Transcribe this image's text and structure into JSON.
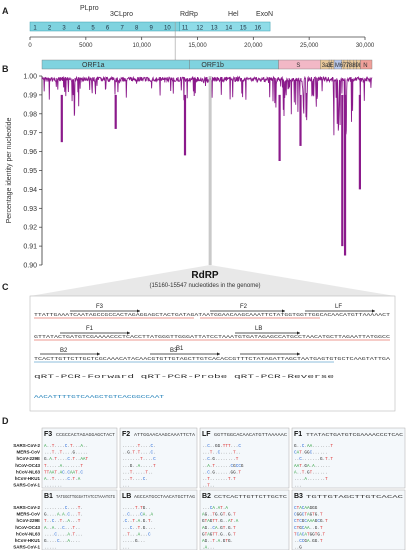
{
  "panels": {
    "A": "A",
    "B": "B",
    "C": "C",
    "D": "D"
  },
  "panel_a": {
    "top_labels": [
      "PLpro",
      "3CLpro",
      "RdRp",
      "Hel",
      "ExoN"
    ],
    "nsp_numbers_a": [
      "1",
      "2",
      "3",
      "4",
      "5",
      "6",
      "7",
      "8",
      "9",
      "10"
    ],
    "nsp_numbers_b": [
      "11",
      "12",
      "13",
      "14",
      "15",
      "16"
    ],
    "ruler_ticks": [
      "0",
      "5000",
      "10,000",
      "15,000",
      "20,000",
      "25,000",
      "30,000"
    ]
  },
  "panel_b": {
    "orfs": [
      "ORF1a",
      "ORF1b",
      "S",
      "3a",
      "3b",
      "E",
      "M",
      "6",
      "7a",
      "7b",
      "8a",
      "8b",
      "9b",
      "N"
    ],
    "y_axis_label": "Percentage identity per nucleotide",
    "y_ticks": [
      "1.00",
      "0.99",
      "0.98",
      "0.97",
      "0.96",
      "0.95",
      "0.94",
      "0.93",
      "0.92",
      "0.91",
      "0.90"
    ],
    "colors": {
      "trace": "#8b1a8b",
      "orf1": "#7fd3df",
      "orf_s": "#f2b8c6",
      "orf_acc": "#e9c89a",
      "orf_mn": "#b7c7ea"
    }
  },
  "panel_c": {
    "title": "RdRP",
    "subtitle": "(15160-15547 nucleotides in the genome)",
    "seq_lines": [
      "TTATTGAAATCAATAGCCGCCACTAGAGGAGCTACTGATAGATAATGGAACAAGCAAATTCTATGGTGGTTGGCACAACATGTTAAAAACT",
      "GTTATACTGATGTCGAAAACCCTCACCTTATGGGTTGGGATTATCCTAAATGTGATAGAGCCATGCCTAACATGCTTAGAATTATGGCC",
      "TCACTTGTTCTTGCTCGCAAACATACAACGTGTTGTAGCTTGTCACACCGTTTCTATAGATTAGCTAATGAGTGTGCTCAAGTATTGA",
      "qRT-PCR-Forward          qRT-PCR-Probe          qRT-PCR-Reverse",
      "AACATTTTGTCAAGCTGTCACGGCCAAT"
    ],
    "primer_labels": [
      "F3",
      "F2",
      "LF",
      "F1",
      "LB",
      "B1",
      "B2",
      "B3"
    ]
  },
  "panel_d": {
    "species": [
      "SARS-CoV-2",
      "MERS-CoV",
      "hCoV-229E",
      "hCoV-OC43",
      "hCoV-NL63",
      "hCoV-HKU1",
      "SARS-CoV-1"
    ],
    "blocks_top": [
      {
        "label": "F3",
        "ref": "CCGCCACTAGAGGAGCTACT",
        "rows": [
          "A..T....C.T...A..",
          "...T..T....G.....",
          "G.A.T....C.T..AAT",
          "T.....A.......T",
          "TTAAT.AC.CAAT.C",
          "A..T.....C.T.A",
          "......."
        ]
      },
      {
        "label": "F2",
        "ref": "ATTGGAACAAGCAAATTCTA",
        "rows": [
          "......T....C.",
          "..G.T.T....C.",
          ".......T....C",
          "...G..A.....T",
          "...T.....T..",
          "...T....C.",
          "..."
        ]
      },
      {
        "label": "LF",
        "ref": "GGTTGGCACAACATGTTAAAAAC",
        "rows": [
          "..C..GG.TTT...C",
          "...T..C.....T..",
          "..C.G........T",
          "..A.T......CGCCG",
          "..C.G......GG.T",
          "..T.......T.T",
          "..T.."
        ]
      },
      {
        "label": "F1",
        "ref": "TTATACTGATGTCGAAAACCCTCAC",
        "rows": [
          "G..C.AA.......T",
          "CAT.GGC......",
          "..C.......G.T.T",
          "AAT.GA.A......",
          "A..T.GT......",
          "....A.......T",
          "..."
        ]
      }
    ],
    "blocks_bottom": [
      {
        "label": "B1",
        "ref": "TATGGGTTGGGATTATCCTAAATGTG",
        "rows": [
          "........C....T.",
          "G....A.A.C...T.",
          "T..C..T..A...T",
          "A..A...C...T..",
          "....C....A.T...",
          "G....C...A....",
          "....."
        ]
      },
      {
        "label": "LB",
        "ref": "AGCCATGCCTAACATGCTTAG",
        "rows": [
          ".....T.TG..",
          "..C....CA..A",
          ".C..T.A.G.T.",
          "...C..T.G....",
          "..T...A...C",
          ".....G...",
          "..."
        ]
      },
      {
        "label": "B2",
        "ref": "CCTCACTTGTTCTTGCTC",
        "rows": [
          "...CA.AT.A",
          "AG..TG.GT.G.T",
          "GTAGTT.G..AT.A",
          "AG..CA.GT.G.T",
          "GTAGTT.G..G.T",
          "AG..T.A.GTG.",
          ".A..."
        ]
      },
      {
        "label": "B3",
        "ref": "TGTTGTAGCTTGTCACAC",
        "rows": [
          "CTACAAGGG",
          "CGGCTAGTG.T",
          "CTCGCAAAGCG.T",
          "CTGCAA..G.T",
          "TCACATGGTG.T",
          "..CCGA.GG.T",
          "..G"
        ]
      }
    ]
  }
}
